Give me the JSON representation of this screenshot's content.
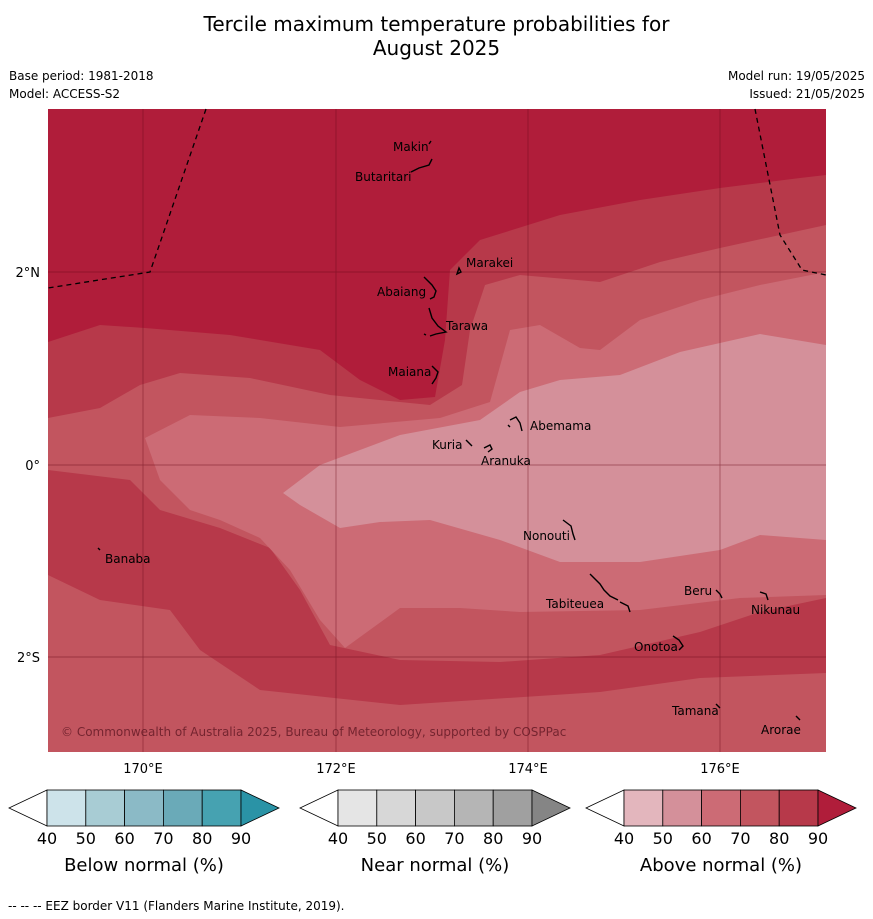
{
  "title_line1": "Tercile maximum temperature probabilities for",
  "title_line2": "August 2025",
  "base_period": "Base period: 1981-2018",
  "model": "Model: ACCESS-S2",
  "model_run": "Model run: 19/05/2025",
  "issued": "Issued: 21/05/2025",
  "copyright": "© Commonwealth of Australia 2025, Bureau of Meteorology, supported by COSPPac",
  "eez_note": "--  --  -- EEZ border V11 (Flanders Marine Institute, 2019).",
  "lon_labels": [
    "170°E",
    "172°E",
    "174°E",
    "176°E"
  ],
  "lat_labels": [
    "2°N",
    "0°",
    "2°S"
  ],
  "places": [
    "Makin",
    "Butaritari",
    "Marakei",
    "Abaiang",
    "Tarawa",
    "Maiana",
    "Abemama",
    "Kuria",
    "Aranuka",
    "Nonouti",
    "Banaba",
    "Tabiteuea",
    "Beru",
    "Nikunau",
    "Onotoa",
    "Tamana",
    "Arorae"
  ],
  "colorbars": [
    {
      "title": "Below normal (%)",
      "ticks": [
        "40",
        "50",
        "60",
        "70",
        "80",
        "90"
      ],
      "colors": [
        "#ffffff",
        "#cde3ea",
        "#a8ccd4",
        "#8bbac6",
        "#6aaab8",
        "#46a2b1",
        "#2a93a6"
      ]
    },
    {
      "title": "Near normal (%)",
      "ticks": [
        "40",
        "50",
        "60",
        "70",
        "80",
        "90"
      ],
      "colors": [
        "#ffffff",
        "#e5e5e5",
        "#d7d7d7",
        "#c8c8c8",
        "#b5b5b5",
        "#a0a0a0",
        "#858585"
      ]
    },
    {
      "title": "Above normal (%)",
      "ticks": [
        "40",
        "50",
        "60",
        "70",
        "80",
        "90"
      ],
      "colors": [
        "#ffffff",
        "#e3b6bd",
        "#d4909a",
        "#cc6b75",
        "#c2555f",
        "#b7394a",
        "#b01d3a"
      ]
    }
  ],
  "legend_levels": {
    "above_50_60": "#d4909a",
    "above_60_70": "#cc6b75",
    "above_70_80": "#c2555f",
    "above_80_90": "#b7394a",
    "above_90": "#b01d3a"
  }
}
